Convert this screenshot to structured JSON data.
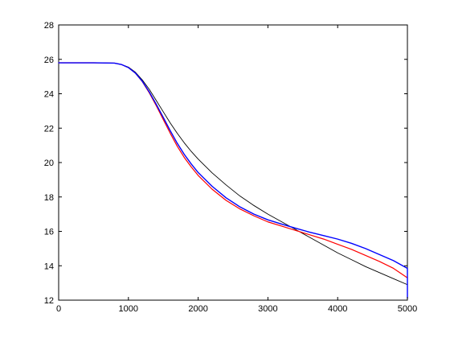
{
  "chart_data": {
    "type": "line",
    "title": "",
    "xlabel": "",
    "ylabel": "",
    "xlim": [
      0,
      5000
    ],
    "ylim": [
      12,
      28
    ],
    "grid": false,
    "x_ticks": [
      0,
      1000,
      2000,
      3000,
      4000,
      5000
    ],
    "y_ticks": [
      12,
      14,
      16,
      18,
      20,
      22,
      24,
      26,
      28
    ],
    "series": [
      {
        "color": "#000000",
        "width": 0.9,
        "x": [
          0,
          500,
          800,
          900,
          1000,
          1100,
          1200,
          1300,
          1400,
          1500,
          1600,
          1700,
          1800,
          1900,
          2000,
          2200,
          2400,
          2600,
          2800,
          3000,
          3200,
          3400,
          3600,
          3800,
          4000,
          4200,
          4400,
          4600,
          4800,
          5000
        ],
        "y": [
          25.8,
          25.8,
          25.78,
          25.7,
          25.55,
          25.25,
          24.8,
          24.25,
          23.6,
          22.95,
          22.3,
          21.7,
          21.15,
          20.65,
          20.2,
          19.4,
          18.7,
          18.05,
          17.5,
          17.0,
          16.55,
          16.1,
          15.65,
          15.2,
          14.75,
          14.35,
          13.95,
          13.6,
          13.25,
          12.9
        ]
      },
      {
        "color": "#ff0000",
        "width": 1.2,
        "x": [
          0,
          500,
          800,
          900,
          1000,
          1100,
          1200,
          1300,
          1400,
          1500,
          1600,
          1700,
          1800,
          1900,
          2000,
          2200,
          2400,
          2600,
          2800,
          3000,
          3200,
          3400,
          3600,
          3800,
          4000,
          4200,
          4400,
          4600,
          4800,
          5000
        ],
        "y": [
          25.8,
          25.8,
          25.78,
          25.7,
          25.52,
          25.2,
          24.7,
          24.05,
          23.3,
          22.5,
          21.7,
          20.95,
          20.3,
          19.75,
          19.25,
          18.45,
          17.8,
          17.3,
          16.9,
          16.55,
          16.3,
          16.05,
          15.8,
          15.55,
          15.25,
          14.95,
          14.6,
          14.25,
          13.85,
          13.3
        ]
      },
      {
        "color": "#0000ff",
        "width": 1.4,
        "x": [
          0,
          500,
          800,
          900,
          1000,
          1100,
          1200,
          1300,
          1400,
          1500,
          1600,
          1700,
          1800,
          1900,
          2000,
          2200,
          2400,
          2600,
          2800,
          3000,
          3200,
          3400,
          3600,
          3800,
          4000,
          4200,
          4400,
          4600,
          4800,
          5000,
          5000
        ],
        "y": [
          25.8,
          25.8,
          25.78,
          25.7,
          25.52,
          25.2,
          24.72,
          24.1,
          23.38,
          22.62,
          21.85,
          21.12,
          20.48,
          19.92,
          19.42,
          18.62,
          17.95,
          17.42,
          17.0,
          16.67,
          16.42,
          16.18,
          15.95,
          15.75,
          15.55,
          15.3,
          15.0,
          14.65,
          14.3,
          13.85,
          12.1
        ]
      }
    ]
  }
}
